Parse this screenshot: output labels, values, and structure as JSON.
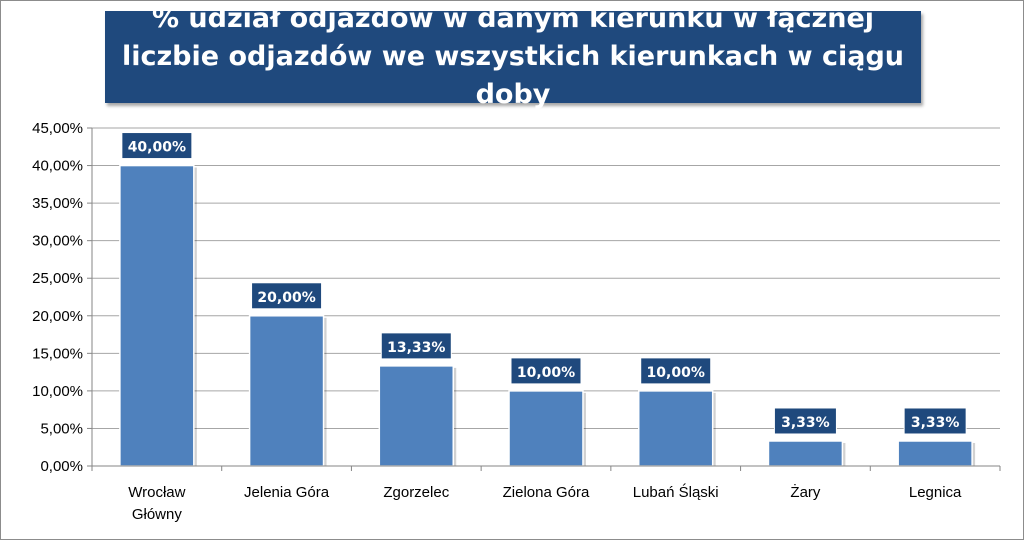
{
  "chart_data": {
    "type": "bar",
    "title": "% udział odjazdów w danym kierunku w łącznej liczbie odjazdów we wszystkich kierunkach w ciągu doby",
    "categories": [
      "Wrocław Główny",
      "Jelenia Góra",
      "Zgorzelec",
      "Zielona Góra",
      "Lubań Śląski",
      "Żary",
      "Legnica"
    ],
    "values": [
      40.0,
      20.0,
      13.33,
      10.0,
      10.0,
      3.33,
      3.33
    ],
    "data_labels": [
      "40,00%",
      "20,00%",
      "13,33%",
      "10,00%",
      "10,00%",
      "3,33%",
      "3,33%"
    ],
    "ylim": [
      0,
      45
    ],
    "yticks": [
      0,
      5,
      10,
      15,
      20,
      25,
      30,
      35,
      40,
      45
    ],
    "ytick_labels": [
      "0,00%",
      "5,00%",
      "10,00%",
      "15,00%",
      "20,00%",
      "25,00%",
      "30,00%",
      "35,00%",
      "40,00%",
      "45,00%"
    ],
    "xlabel": "",
    "ylabel": "",
    "grid": true,
    "legend": "none",
    "colors": {
      "bar": "#4f81bd",
      "bar_edge": "#ffffff",
      "label_bg": "#1f497d",
      "title_bg": "#1f497d",
      "gridline": "#a6a6a6"
    }
  }
}
